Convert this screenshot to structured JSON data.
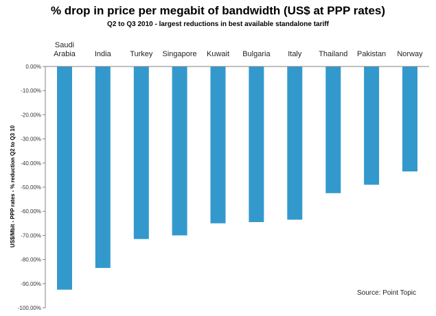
{
  "chart_data": {
    "type": "bar",
    "title": "% drop in price per megabit of bandwidth (US$ at PPP rates)",
    "subtitle": "Q2 to Q3 2010 - largest reductions in best available standalone tariff",
    "categories": [
      "Saudi Arabia",
      "India",
      "Turkey",
      "Singapore",
      "Kuwait",
      "Bulgaria",
      "Italy",
      "Thailand",
      "Pakistan",
      "Norway"
    ],
    "category_lines": [
      [
        "Saudi",
        "Arabia"
      ],
      [
        "India"
      ],
      [
        "Turkey"
      ],
      [
        "Singapore"
      ],
      [
        "Kuwait"
      ],
      [
        "Bulgaria"
      ],
      [
        "Italy"
      ],
      [
        "Thailand"
      ],
      [
        "Pakistan"
      ],
      [
        "Norway"
      ]
    ],
    "values": [
      -92.5,
      -83.5,
      -71.5,
      -70.0,
      -65.0,
      -64.5,
      -63.5,
      -52.5,
      -49.0,
      -43.5
    ],
    "ylabel": "US$/Mbit - PPP rates - % reduction Q2 to Q3 10",
    "xlabel": "",
    "ylim": [
      -100,
      0
    ],
    "yticks": [
      0,
      -10,
      -20,
      -30,
      -40,
      -50,
      -60,
      -70,
      -80,
      -90,
      -100
    ],
    "ytick_labels": [
      "0.00%",
      "-10.00%",
      "-20.00%",
      "-30.00%",
      "-40.00%",
      "-50.00%",
      "-60.00%",
      "-70.00%",
      "-80.00%",
      "-90.00%",
      "-100.00%"
    ],
    "annotation": "Source: Point Topic",
    "bar_color": "#3399cc",
    "axis_color": "#808080",
    "grid": false,
    "legend": "none"
  }
}
